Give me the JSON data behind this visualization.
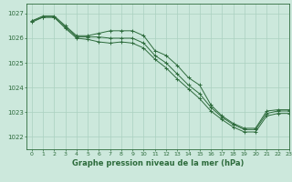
{
  "title": "Graphe pression niveau de la mer (hPa)",
  "bg_color": "#cce8dc",
  "grid_color": "#aad0c0",
  "line_color": "#2d6b3c",
  "xlim": [
    -0.5,
    23
  ],
  "ylim": [
    1021.5,
    1027.4
  ],
  "yticks": [
    1022,
    1023,
    1024,
    1025,
    1026,
    1027
  ],
  "xticks": [
    0,
    1,
    2,
    3,
    4,
    5,
    6,
    7,
    8,
    9,
    10,
    11,
    12,
    13,
    14,
    15,
    16,
    17,
    18,
    19,
    20,
    21,
    22,
    23
  ],
  "series": [
    [
      1026.7,
      1026.9,
      1026.9,
      1026.5,
      1026.1,
      1026.1,
      1026.2,
      1026.3,
      1026.3,
      1026.3,
      1026.1,
      1025.5,
      1025.3,
      1024.9,
      1024.4,
      1024.1,
      1023.3,
      1022.85,
      1022.55,
      1022.35,
      1022.35,
      1023.05,
      1023.1,
      1023.1
    ],
    [
      1026.7,
      1026.85,
      1026.85,
      1026.45,
      1026.05,
      1026.05,
      1026.05,
      1026.0,
      1026.0,
      1026.0,
      1025.8,
      1025.3,
      1025.0,
      1024.55,
      1024.1,
      1023.75,
      1023.2,
      1022.8,
      1022.5,
      1022.3,
      1022.3,
      1022.95,
      1023.05,
      1023.05
    ],
    [
      1026.65,
      1026.85,
      1026.85,
      1026.4,
      1026.0,
      1025.95,
      1025.85,
      1025.8,
      1025.85,
      1025.8,
      1025.6,
      1025.15,
      1024.8,
      1024.35,
      1023.95,
      1023.55,
      1023.05,
      1022.7,
      1022.4,
      1022.2,
      1022.2,
      1022.85,
      1022.95,
      1022.95
    ]
  ]
}
